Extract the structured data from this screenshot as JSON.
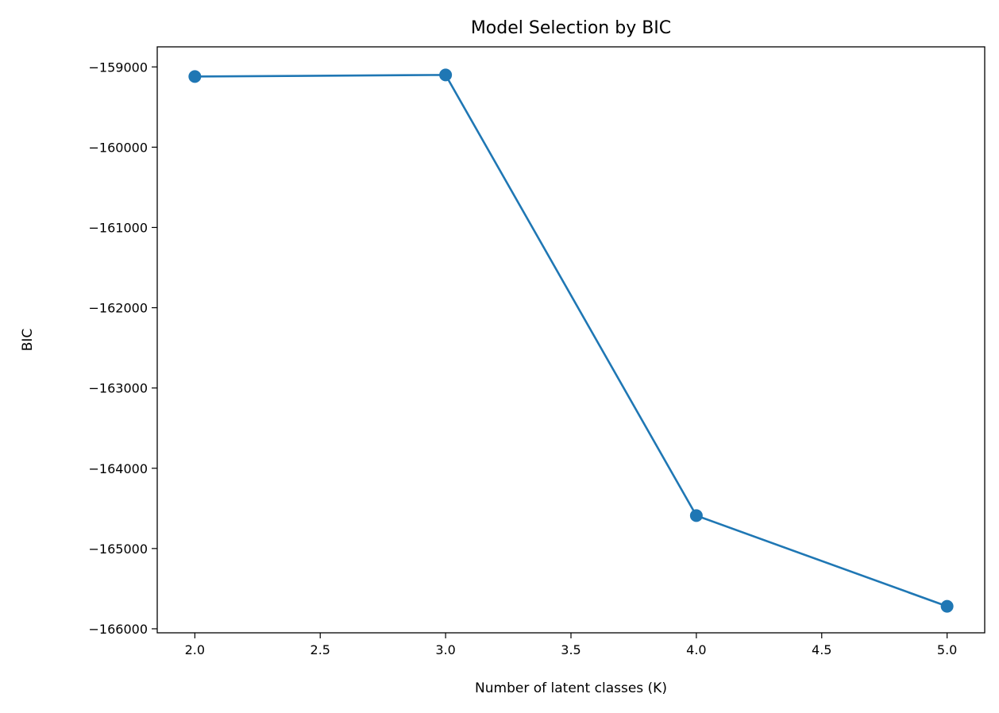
{
  "chart_data": {
    "type": "line",
    "title": "Model Selection by BIC",
    "xlabel": "Number of latent classes (K)",
    "ylabel": "BIC",
    "x": [
      2,
      3,
      4,
      5
    ],
    "series": [
      {
        "values": [
          -159120,
          -159100,
          -164590,
          -165720
        ],
        "color": "#1f77b4",
        "marker": "circle"
      }
    ],
    "xlim": [
      1.85,
      5.15
    ],
    "ylim": [
      -166050,
      -158750
    ],
    "xticks": [
      2.0,
      2.5,
      3.0,
      3.5,
      4.0,
      4.5,
      5.0
    ],
    "xtick_labels": [
      "2.0",
      "2.5",
      "3.0",
      "3.5",
      "4.0",
      "4.5",
      "5.0"
    ],
    "yticks": [
      -159000,
      -160000,
      -161000,
      -162000,
      -163000,
      -164000,
      -165000,
      -166000
    ],
    "ytick_labels": [
      "−159000",
      "−160000",
      "−161000",
      "−162000",
      "−163000",
      "−164000",
      "−165000",
      "−166000"
    ],
    "grid": false,
    "legend": "none"
  }
}
